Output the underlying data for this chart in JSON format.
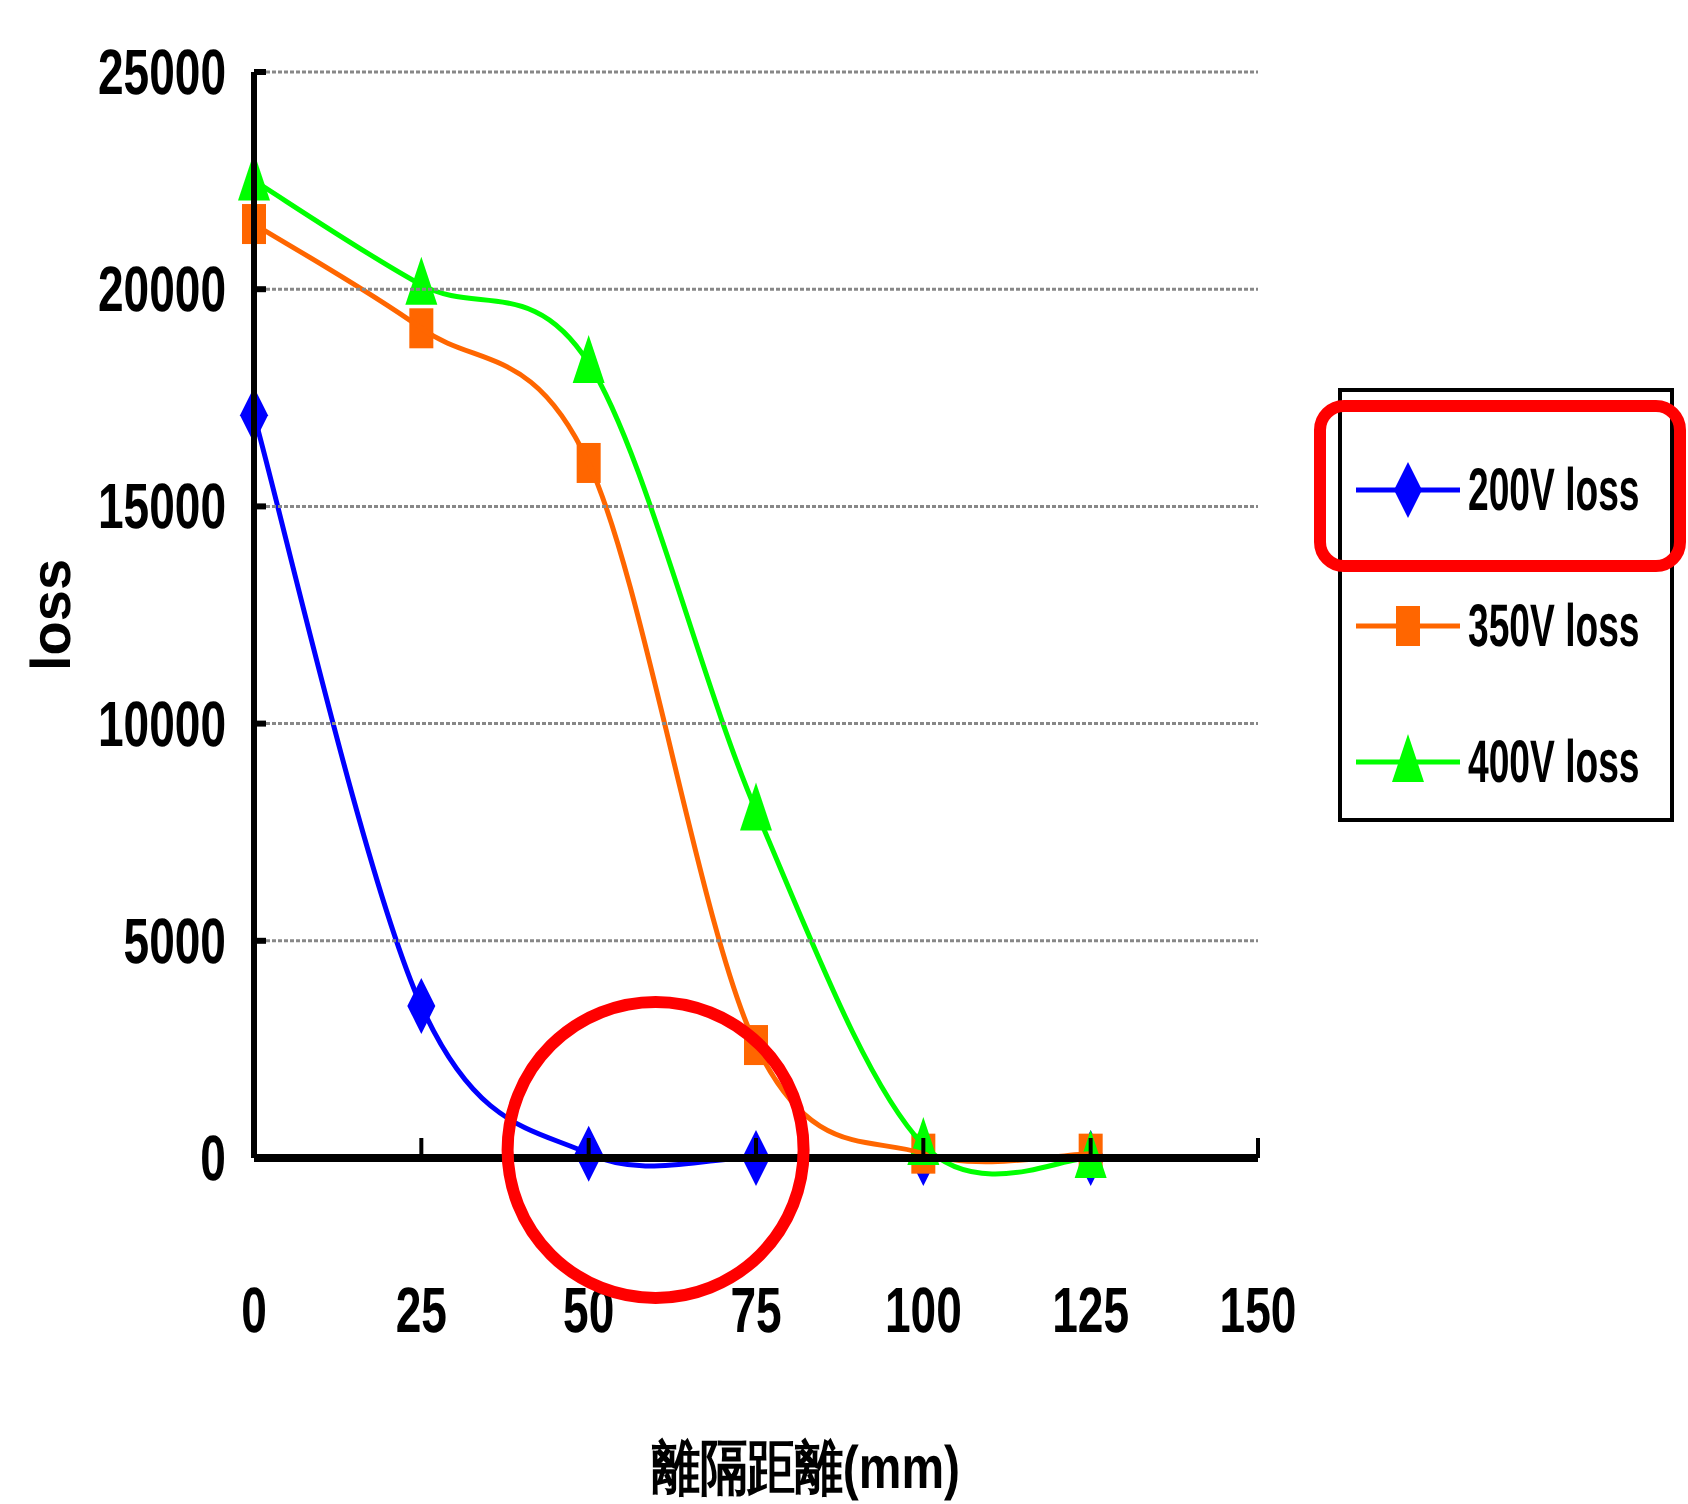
{
  "chart_data": {
    "type": "line",
    "xlabel": "離隔距離(mm)",
    "ylabel": "loss",
    "x": [
      0,
      25,
      50,
      75,
      100,
      125
    ],
    "xlim": [
      0,
      150
    ],
    "xticks": [
      0,
      25,
      50,
      75,
      100,
      125,
      150
    ],
    "ylim": [
      0,
      25000
    ],
    "yticks": [
      0,
      5000,
      10000,
      15000,
      20000,
      25000
    ],
    "grid": "y",
    "legend": "right",
    "series": [
      {
        "name": "200V loss",
        "color": "#0000ff",
        "marker": "diamond",
        "values": [
          17100,
          3500,
          100,
          0,
          0,
          0
        ]
      },
      {
        "name": "350V loss",
        "color": "#ff6600",
        "marker": "square",
        "values": [
          21500,
          19100,
          16000,
          2600,
          100,
          100
        ]
      },
      {
        "name": "400V loss",
        "color": "#00ff00",
        "marker": "triangle",
        "values": [
          22500,
          20100,
          18300,
          8000,
          300,
          0
        ]
      }
    ]
  }
}
